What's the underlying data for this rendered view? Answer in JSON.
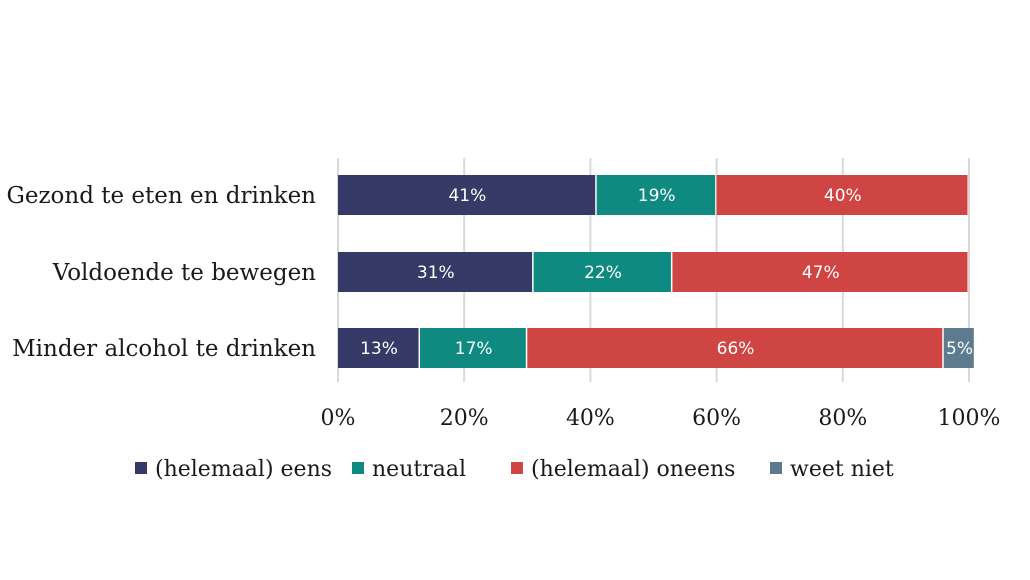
{
  "chart_data": {
    "type": "bar",
    "orientation": "horizontal",
    "stacked": true,
    "categories": [
      "Gezond te eten en drinken",
      "Voldoende te bewegen",
      "Minder alcohol te drinken"
    ],
    "series": [
      {
        "name": "(helemaal) eens",
        "color": "#353a66",
        "values": [
          41,
          31,
          13
        ],
        "labels": [
          "41%",
          "31%",
          "13%"
        ]
      },
      {
        "name": "neutraal",
        "color": "#0e8a80",
        "values": [
          19,
          22,
          17
        ],
        "labels": [
          "19%",
          "22%",
          "17%"
        ]
      },
      {
        "name": "(helemaal) oneens",
        "color": "#cf4544",
        "values": [
          40,
          47,
          66
        ],
        "labels": [
          "40%",
          "47%",
          "66%"
        ]
      },
      {
        "name": "weet niet",
        "color": "#5d7a8f",
        "values": [
          0,
          0,
          5
        ],
        "labels": [
          "",
          "",
          "5%"
        ]
      }
    ],
    "xlim": [
      0,
      100
    ],
    "xticks": [
      "0%",
      "20%",
      "40%",
      "60%",
      "80%",
      "100%"
    ],
    "grid": true,
    "legend_position": "bottom"
  }
}
